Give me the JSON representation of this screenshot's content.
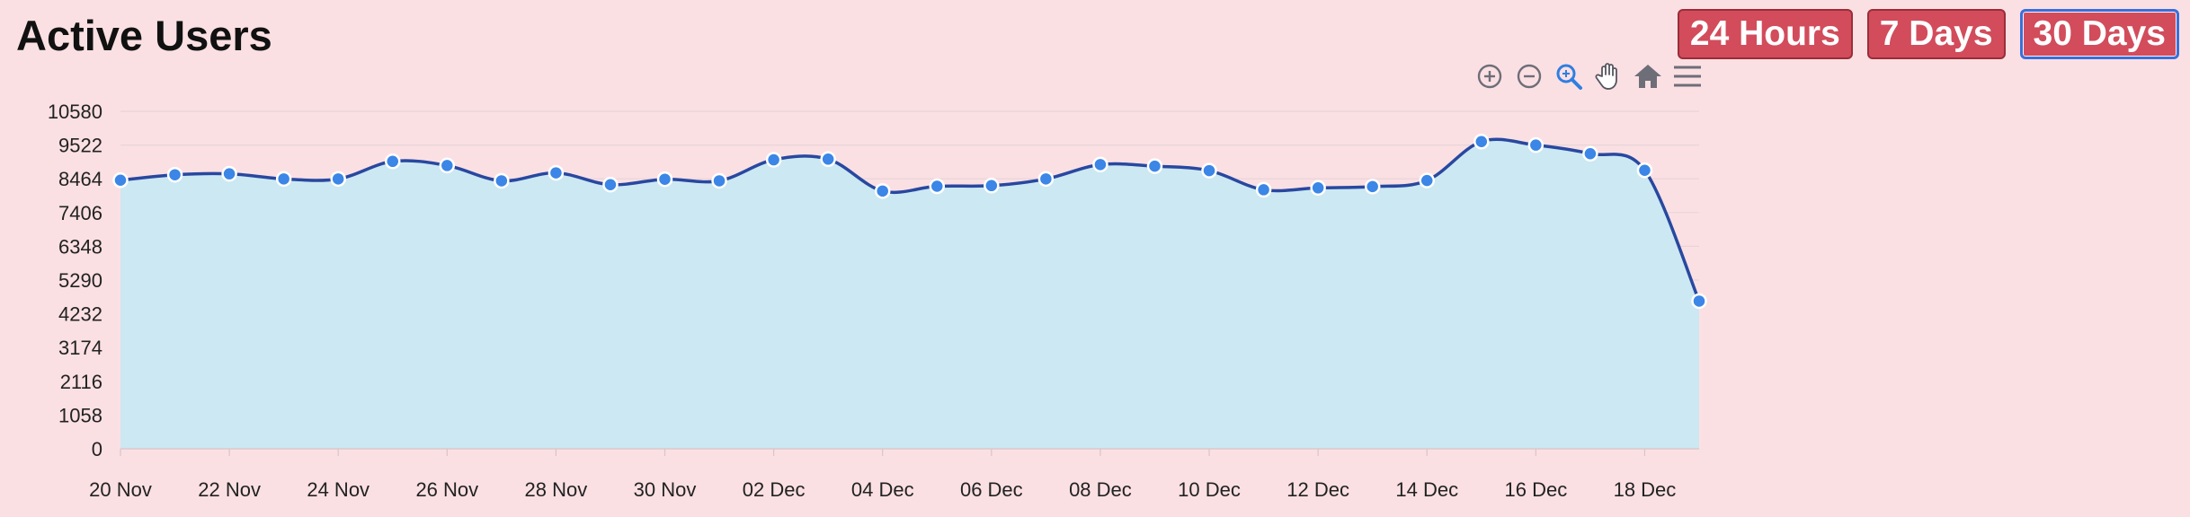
{
  "title": "Active Users",
  "range_buttons": [
    {
      "label": "24 Hours",
      "active": false
    },
    {
      "label": "7 Days",
      "active": false
    },
    {
      "label": "30 Days",
      "active": true
    }
  ],
  "toolbar": {
    "icons": [
      "zoom-in-icon",
      "zoom-out-icon",
      "zoom-select-icon",
      "pan-icon",
      "reset-home-icon",
      "menu-icon"
    ]
  },
  "colors": {
    "line": "#2848a0",
    "area": "#cce8f2",
    "point": "#3b86e6",
    "button": "#d24c5c",
    "active_border": "#3b6fd8",
    "background": "#fbe0e3"
  },
  "chart_data": {
    "type": "area",
    "x_tick_labels": [
      "20 Nov",
      "22 Nov",
      "24 Nov",
      "26 Nov",
      "28 Nov",
      "30 Nov",
      "02 Dec",
      "04 Dec",
      "06 Dec",
      "08 Dec",
      "10 Dec",
      "12 Dec",
      "14 Dec",
      "16 Dec",
      "18 Dec"
    ],
    "y_tick_labels": [
      "0",
      "1058",
      "2116",
      "3174",
      "4232",
      "5290",
      "6348",
      "7406",
      "8464",
      "9522",
      "10580"
    ],
    "ylim": [
      0,
      10580
    ],
    "x": [
      "20 Nov",
      "21 Nov",
      "22 Nov",
      "23 Nov",
      "24 Nov",
      "25 Nov",
      "26 Nov",
      "27 Nov",
      "28 Nov",
      "29 Nov",
      "30 Nov",
      "01 Dec",
      "02 Dec",
      "03 Dec",
      "04 Dec",
      "05 Dec",
      "06 Dec",
      "07 Dec",
      "08 Dec",
      "09 Dec",
      "10 Dec",
      "11 Dec",
      "12 Dec",
      "13 Dec",
      "14 Dec",
      "15 Dec",
      "16 Dec",
      "17 Dec",
      "18 Dec",
      "19 Dec"
    ],
    "values": [
      8420,
      8590,
      8620,
      8460,
      8460,
      9010,
      8880,
      8400,
      8650,
      8280,
      8450,
      8400,
      9060,
      9080,
      8080,
      8230,
      8250,
      8460,
      8910,
      8860,
      8720,
      8120,
      8180,
      8220,
      8410,
      9630,
      9520,
      9250,
      8730,
      4630
    ],
    "grid": true,
    "legend": "none"
  }
}
